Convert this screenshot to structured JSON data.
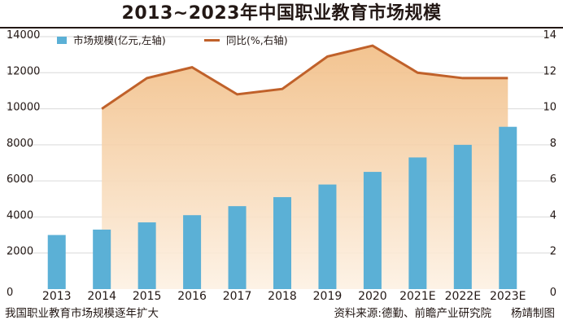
{
  "title": "2013~2023年中国职业教育市场规模",
  "footer": {
    "caption": "我国职业教育市场规模逐年扩大",
    "source": "资料来源:德勤、前瞻产业研究院",
    "credit": "杨靖制图"
  },
  "colors": {
    "bar": "#5bb0d6",
    "line": "#c0612a",
    "area_top": "#f1bd84",
    "area_bottom": "#fdf1e3",
    "grid": "#d9d9d9",
    "text": "#231815"
  },
  "chart_data": {
    "type": "bar+line",
    "categories": [
      "2013",
      "2014",
      "2015",
      "2016",
      "2017",
      "2018",
      "2019",
      "2020",
      "2021E",
      "2022E",
      "2023E"
    ],
    "series": [
      {
        "name": "市场规模(亿元,左轴)",
        "type": "bar",
        "axis": "left",
        "values": [
          3000,
          3300,
          3700,
          4100,
          4600,
          5100,
          5800,
          6500,
          7300,
          8000,
          9000
        ]
      },
      {
        "name": "同比(%,右轴)",
        "type": "line",
        "axis": "right",
        "area_fill": true,
        "values": [
          null,
          10.0,
          11.7,
          12.3,
          10.8,
          11.1,
          12.9,
          13.5,
          12.0,
          11.7,
          11.7
        ]
      }
    ],
    "y_left": {
      "min": 0,
      "max": 14000,
      "ticks": [
        "0",
        "2000",
        "4000",
        "6000",
        "8000",
        "10000",
        "12000",
        "14000"
      ]
    },
    "y_right": {
      "min": 0,
      "max": 14,
      "ticks": [
        "0",
        "2",
        "4",
        "6",
        "8",
        "10",
        "12",
        "14"
      ]
    },
    "grid": true,
    "legend": "top-left"
  }
}
